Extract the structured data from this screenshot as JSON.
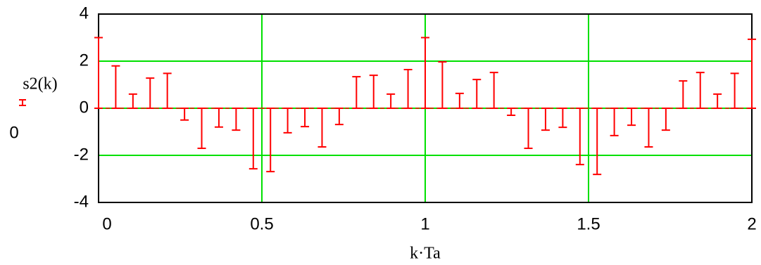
{
  "chart_data": {
    "type": "stem",
    "x_label": "k·Ta",
    "y_label": "s2(k)",
    "x": [
      0,
      0.0526,
      0.1053,
      0.1579,
      0.2105,
      0.2632,
      0.3158,
      0.3684,
      0.4211,
      0.4737,
      0.5263,
      0.5789,
      0.6316,
      0.6842,
      0.7368,
      0.7895,
      0.8421,
      0.8947,
      0.9474,
      1,
      1.0526,
      1.1053,
      1.1579,
      1.2105,
      1.2632,
      1.3158,
      1.3684,
      1.4211,
      1.4737,
      1.5263,
      1.5789,
      1.6316,
      1.6842,
      1.7368,
      1.7895,
      1.8421,
      1.8947,
      1.9474,
      2
    ],
    "series": [
      {
        "name": "s2(k)",
        "color": "#ff0000",
        "values": [
          3,
          1.8,
          0.6,
          1.28,
          1.48,
          -0.5,
          -1.7,
          -0.8,
          -0.93,
          -2.57,
          -2.69,
          -1.04,
          -0.78,
          -1.64,
          -0.69,
          1.34,
          1.4,
          0.6,
          1.64,
          3,
          1.97,
          0.63,
          1.22,
          1.52,
          -0.3,
          -1.7,
          -0.93,
          -0.81,
          -2.39,
          -2.81,
          -1.16,
          -0.72,
          -1.64,
          -0.93,
          1.16,
          1.52,
          0.6,
          1.48,
          2.93
        ]
      }
    ],
    "reference_line": {
      "label": "0",
      "value": 0,
      "color": "#ff0000"
    },
    "xlim": [
      0,
      2
    ],
    "ylim": [
      -4,
      4
    ],
    "xticks": [
      0,
      0.5,
      1,
      1.5,
      2
    ],
    "yticks": [
      -4,
      -2,
      0,
      2,
      4
    ],
    "grid": true,
    "grid_color": "#00e000"
  }
}
